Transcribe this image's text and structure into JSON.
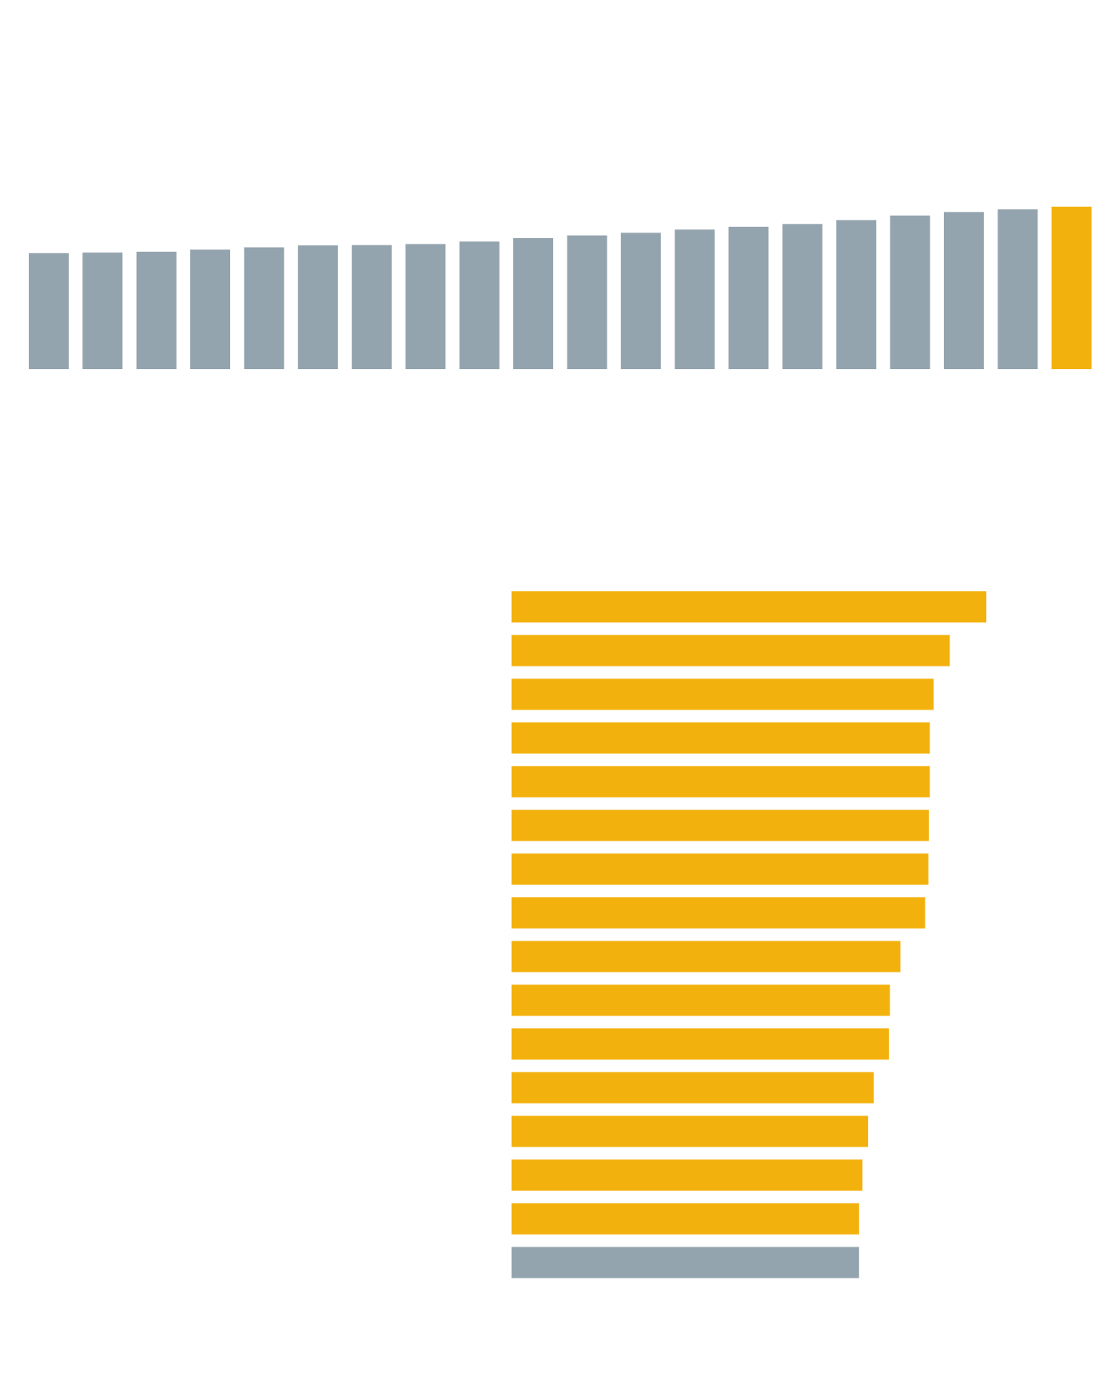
{
  "colors": {
    "background": "#ffffff",
    "gray_bar": "#94a4ae",
    "highlight_bar": "#f3b10d"
  },
  "chart_data": [
    {
      "type": "bar",
      "orientation": "vertical",
      "title": "",
      "xlabel": "",
      "ylabel": "",
      "ylim": [
        0,
        100
      ],
      "grid": false,
      "legend": "none",
      "series": [
        {
          "values": [
            66,
            66.3,
            66.8,
            68,
            69.3,
            70.4,
            70.6,
            71.2,
            72.6,
            74.6,
            76.1,
            77.6,
            79.4,
            81,
            82.6,
            84.8,
            87.4,
            89.4,
            90.9,
            92.4
          ],
          "highlight": [
            false,
            false,
            false,
            false,
            false,
            false,
            false,
            false,
            false,
            false,
            false,
            false,
            false,
            false,
            false,
            false,
            false,
            false,
            false,
            true
          ]
        }
      ]
    },
    {
      "type": "bar",
      "orientation": "horizontal",
      "title": "",
      "xlabel": "",
      "ylabel": "",
      "xlim": [
        0,
        100
      ],
      "grid": false,
      "legend": "none",
      "series": [
        {
          "values": [
            100,
            92.3,
            88.9,
            88.1,
            88.1,
            87.9,
            87.8,
            87.1,
            81.9,
            79.7,
            79.5,
            76.3,
            75.1,
            73.9,
            73.2,
            73.2
          ],
          "highlight": [
            true,
            true,
            true,
            true,
            true,
            true,
            true,
            true,
            true,
            true,
            true,
            true,
            true,
            true,
            true,
            false
          ]
        }
      ]
    }
  ]
}
